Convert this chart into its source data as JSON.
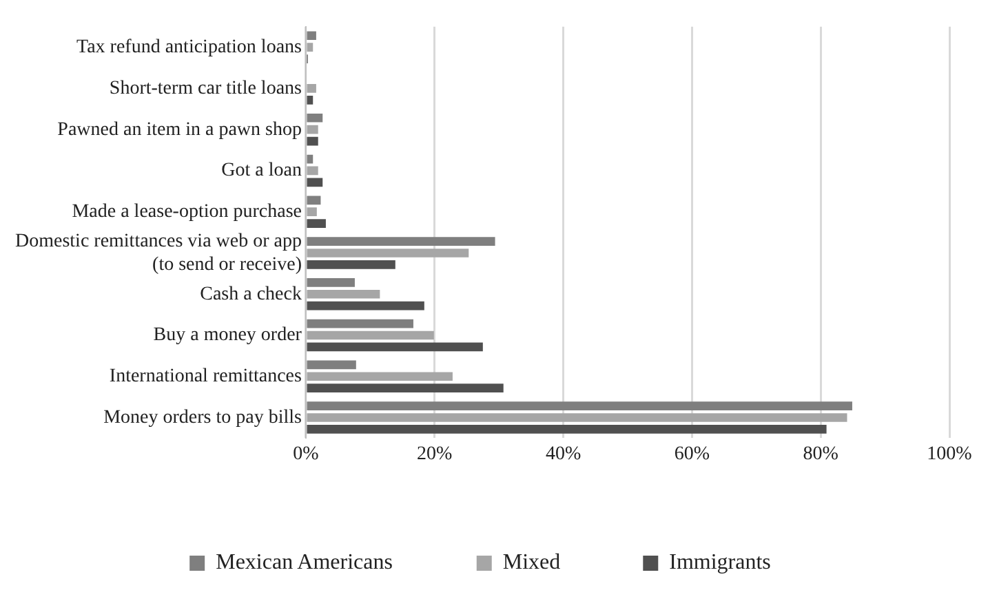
{
  "chart_data": {
    "type": "bar",
    "orientation": "horizontal",
    "categories": [
      "Tax refund anticipation loans",
      "Short-term car title loans",
      "Pawned an item in a pawn shop",
      "Got a loan",
      "Made a lease-option purchase",
      "Domestic remittances via web or app (to send or receive)",
      "Cash a check",
      "Buy a money order",
      "International remittances",
      "Money orders to pay bills"
    ],
    "series": [
      {
        "name": "Mexican Americans",
        "color": "#7f7f7f",
        "values": [
          1.6,
          null,
          2.6,
          1.1,
          2.3,
          29.4,
          7.6,
          16.7,
          7.8,
          84.9
        ]
      },
      {
        "name": "Mixed",
        "color": "#a6a6a6",
        "values": [
          1.1,
          1.6,
          1.9,
          1.9,
          1.7,
          25.3,
          11.5,
          19.9,
          22.8,
          84.1
        ]
      },
      {
        "name": "Immigrants",
        "color": "#505050",
        "values": [
          0.3,
          1.1,
          1.9,
          2.6,
          3.1,
          13.9,
          18.4,
          27.5,
          30.7,
          80.9
        ]
      }
    ],
    "xlim": [
      0,
      100
    ],
    "xticks": [
      {
        "value": 0,
        "label": "0%"
      },
      {
        "value": 20,
        "label": "20%"
      },
      {
        "value": 40,
        "label": "40%"
      },
      {
        "value": 60,
        "label": "60%"
      },
      {
        "value": 80,
        "label": "80%"
      },
      {
        "value": 100,
        "label": "100%"
      }
    ],
    "grid": "x",
    "legend": "bottom"
  }
}
